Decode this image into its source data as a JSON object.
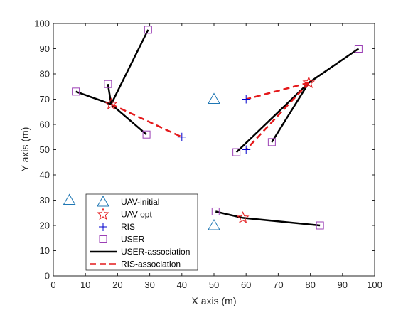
{
  "chart_data": {
    "type": "scatter",
    "title": "",
    "xlabel": "X axis (m)",
    "ylabel": "Y axis (m)",
    "xlim": [
      0,
      100
    ],
    "ylim": [
      0,
      100
    ],
    "xticks": [
      "0",
      "10",
      "20",
      "30",
      "40",
      "50",
      "60",
      "70",
      "80",
      "90",
      "100"
    ],
    "yticks": [
      "0",
      "10",
      "20",
      "30",
      "40",
      "50",
      "60",
      "70",
      "80",
      "90",
      "100"
    ],
    "grid": false,
    "legend_position": "bottom-left",
    "colors": {
      "uav_initial": "#1f77b4",
      "uav_opt": "#e41a1c",
      "ris": "#0000cc",
      "user": "#9b3fb5",
      "user_association": "#000000",
      "ris_association": "#e41a1c"
    },
    "series": [
      {
        "name": "UAV-initial",
        "marker": "triangle",
        "points": [
          [
            5,
            30
          ],
          [
            50,
            70
          ],
          [
            50,
            20
          ]
        ]
      },
      {
        "name": "UAV-opt",
        "marker": "star",
        "points": [
          [
            18,
            68
          ],
          [
            79.5,
            76.5
          ],
          [
            59,
            23
          ]
        ]
      },
      {
        "name": "RIS",
        "marker": "plus",
        "points": [
          [
            40,
            55
          ],
          [
            60,
            70
          ],
          [
            60,
            50
          ]
        ]
      },
      {
        "name": "USER",
        "marker": "square",
        "points": [
          [
            7,
            73
          ],
          [
            17,
            76
          ],
          [
            29.5,
            97.5
          ],
          [
            29,
            56
          ],
          [
            95,
            90
          ],
          [
            57,
            49
          ],
          [
            68,
            53
          ],
          [
            50.5,
            25.5
          ],
          [
            83,
            20
          ]
        ]
      }
    ],
    "user_association": [
      [
        [
          18,
          68
        ],
        [
          7,
          73
        ]
      ],
      [
        [
          18,
          68
        ],
        [
          17,
          76
        ]
      ],
      [
        [
          18,
          68
        ],
        [
          29.5,
          97.5
        ]
      ],
      [
        [
          18,
          68
        ],
        [
          29,
          56
        ]
      ],
      [
        [
          79.5,
          76.5
        ],
        [
          95,
          90
        ]
      ],
      [
        [
          79.5,
          76.5
        ],
        [
          57,
          49
        ]
      ],
      [
        [
          79.5,
          76.5
        ],
        [
          68,
          53
        ]
      ],
      [
        [
          59,
          23
        ],
        [
          50.5,
          25.5
        ]
      ],
      [
        [
          59,
          23
        ],
        [
          83,
          20
        ]
      ]
    ],
    "ris_association": [
      [
        [
          18,
          68
        ],
        [
          40,
          55
        ]
      ],
      [
        [
          79.5,
          76.5
        ],
        [
          60,
          70
        ]
      ],
      [
        [
          79.5,
          76.5
        ],
        [
          60,
          50
        ]
      ]
    ],
    "legend": [
      "UAV-initial",
      "UAV-opt",
      "RIS",
      "USER",
      "USER-association",
      "RIS-association"
    ]
  }
}
